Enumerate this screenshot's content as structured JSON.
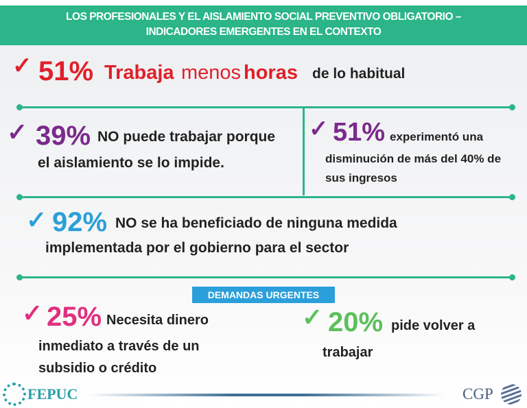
{
  "header": {
    "line1": "LOS PROFESIONALES Y EL AISLAMIENTO SOCIAL PREVENTIVO OBLIGATORIO –",
    "line2": "INDICADORES EMERGENTES EN EL CONTEXTO"
  },
  "colors": {
    "green": "#2bb588",
    "red": "#e0202a",
    "purple": "#7b2a8c",
    "blue": "#2b9fd9",
    "pink": "#e0307e",
    "lightgreen": "#5cc05a"
  },
  "item1": {
    "pct": "51%",
    "w1": "Trabaja",
    "w2": "menos",
    "w3": "horas",
    "rest": "de lo habitual"
  },
  "item2": {
    "pct": "39%",
    "line1": "NO puede trabajar porque",
    "line2": "el aislamiento se lo impide."
  },
  "item3": {
    "pct": "51%",
    "line1": "experimentó una",
    "line2": "disminución de más del 40% de",
    "line3": "sus ingresos"
  },
  "item4": {
    "pct": "92%",
    "line1": "NO se ha beneficiado de ninguna medida",
    "line2": "implementada por el gobierno para el sector"
  },
  "badge": "DEMANDAS URGENTES",
  "item5": {
    "pct": "25%",
    "line1": "Necesita dinero",
    "line2": "inmediato a través de un",
    "line3": "subsidio o crédito"
  },
  "item6": {
    "pct": "20%",
    "line1": "pide volver a",
    "line2": "trabajar"
  },
  "footer": {
    "left_logo": "FEPUC",
    "right_logo": "CGP"
  }
}
